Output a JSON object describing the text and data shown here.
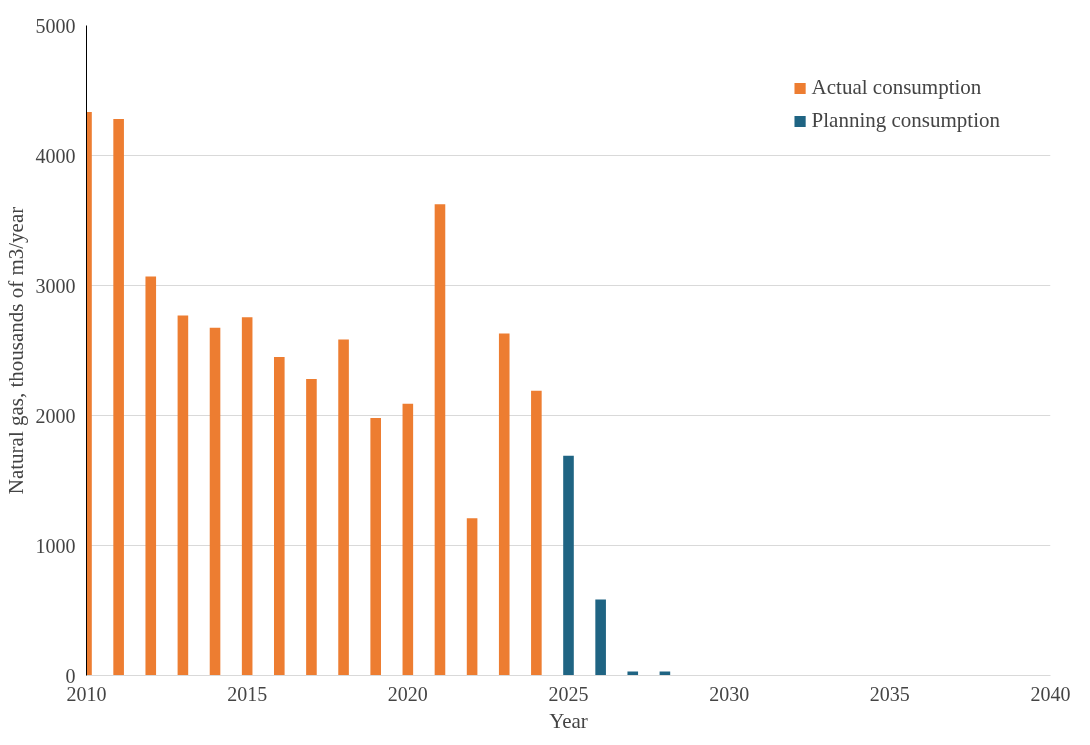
{
  "chart_data": {
    "type": "bar",
    "xlabel": "Year",
    "ylabel": "Natural gas, thousands of m3/year",
    "xlim": [
      2010,
      2040
    ],
    "xticks": [
      2010,
      2015,
      2020,
      2025,
      2030,
      2035,
      2040
    ],
    "ylim": [
      0,
      5000
    ],
    "yticks": [
      0,
      1000,
      2000,
      3000,
      4000,
      5000
    ],
    "grid": "y",
    "legend": "top right",
    "series": [
      {
        "name": "Actual consumption",
        "color": "#ed7d31",
        "x": [
          2010,
          2011,
          2012,
          2013,
          2014,
          2015,
          2016,
          2017,
          2018,
          2019,
          2020,
          2021,
          2022,
          2023,
          2024
        ],
        "values": [
          4335,
          4280,
          3070,
          2770,
          2675,
          2755,
          2450,
          2280,
          2585,
          1980,
          2090,
          3625,
          1210,
          2630,
          2190
        ]
      },
      {
        "name": "Planning consumption",
        "color": "#1f6483",
        "x": [
          2025,
          2026,
          2027,
          2028
        ],
        "values": [
          1690,
          585,
          30,
          30
        ]
      }
    ]
  }
}
